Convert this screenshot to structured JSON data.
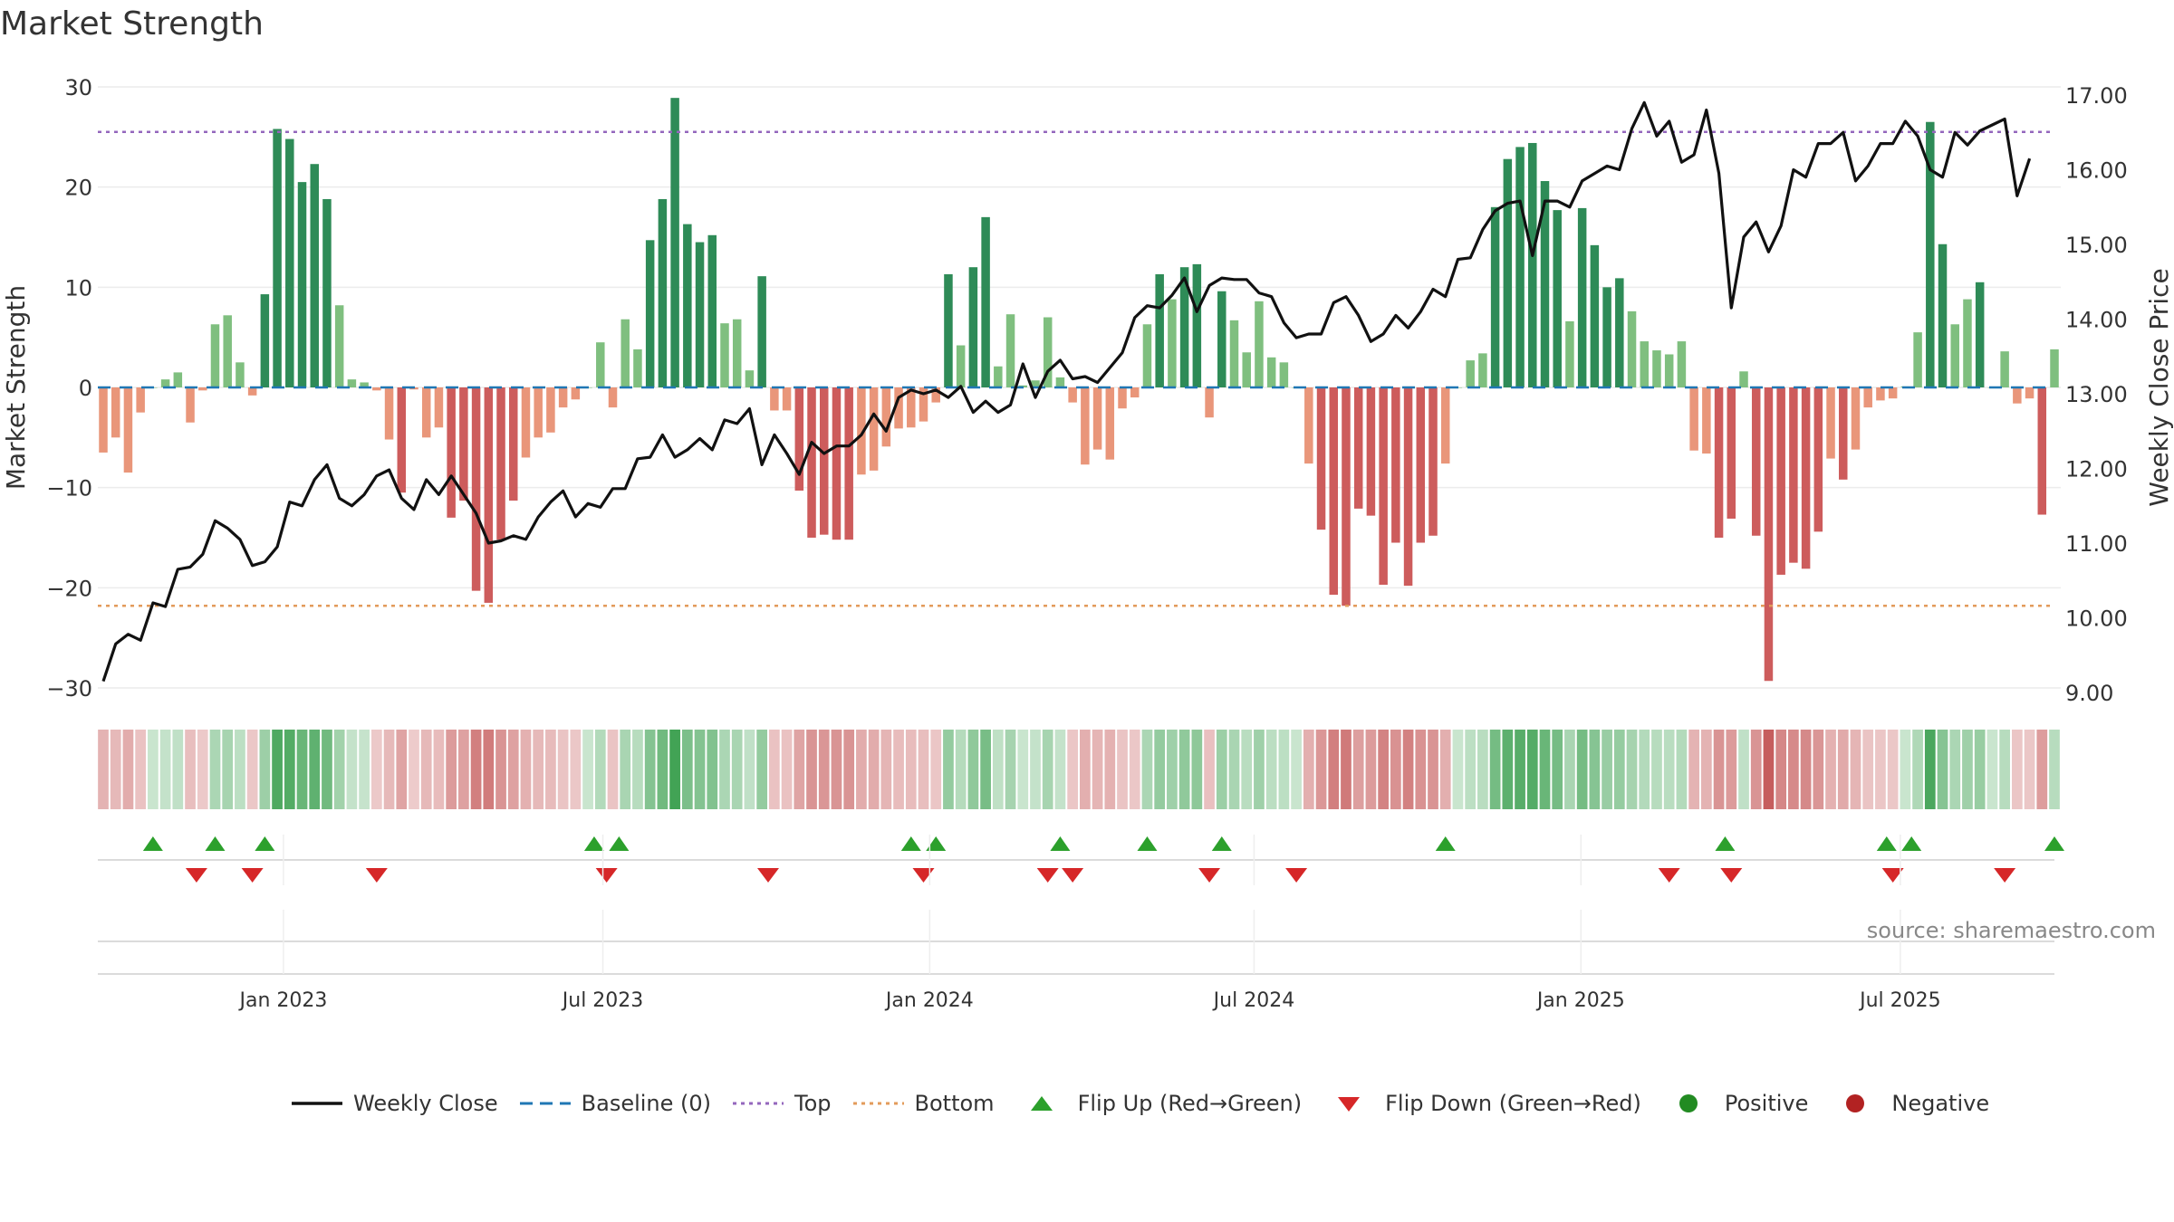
{
  "title": "Market Strength",
  "source": "source: sharemaestro.com",
  "colors": {
    "strong_green": "#2e8b57",
    "light_green": "#7fbf7f",
    "strong_red": "#cd5c5c",
    "light_red": "#e9967a",
    "close_line": "#111111",
    "baseline": "#1f77b4",
    "top": "#9467bd",
    "bottom": "#e39b5b",
    "flip_up": "#2ca02c",
    "flip_down": "#d62728",
    "positive": "#228b22",
    "negative": "#b22222"
  },
  "legend": [
    {
      "label": "Weekly Close",
      "kind": "line",
      "color": "#111111",
      "icon": "line-icon"
    },
    {
      "label": "Baseline (0)",
      "kind": "dash",
      "color": "#1f77b4",
      "icon": "dash-icon"
    },
    {
      "label": "Top",
      "kind": "dot",
      "color": "#9467bd",
      "icon": "dotted-line-icon"
    },
    {
      "label": "Bottom",
      "kind": "dot",
      "color": "#e39b5b",
      "icon": "dotted-line-icon"
    },
    {
      "label": "Flip Up (Red→Green)",
      "kind": "up",
      "color": "#2ca02c",
      "icon": "triangle-up-icon"
    },
    {
      "label": "Flip Down (Green→Red)",
      "kind": "down",
      "color": "#d62728",
      "icon": "triangle-down-icon"
    },
    {
      "label": "Positive",
      "kind": "circle",
      "color": "#228b22",
      "icon": "circle-icon"
    },
    {
      "label": "Negative",
      "kind": "circle",
      "color": "#b22222",
      "icon": "circle-icon"
    }
  ],
  "chart_data": {
    "type": "bar",
    "title": "Market Strength",
    "ylabel": "Market Strength",
    "y2label": "Weekly Close Price",
    "ylim": [
      -31,
      30.5
    ],
    "y2lim": [
      8.9,
      17.2
    ],
    "yticks": [
      30,
      20,
      10,
      0,
      -10,
      -20,
      -30
    ],
    "yticklabels": [
      "30",
      "20",
      "10",
      "0",
      "−10",
      "−20",
      "−30"
    ],
    "y2ticks": [
      17,
      16,
      15,
      14,
      13,
      12,
      11,
      10,
      9
    ],
    "y2ticklabels": [
      "17.00",
      "16.00",
      "15.00",
      "14.00",
      "13.00",
      "12.00",
      "11.00",
      "10.00",
      "9.00"
    ],
    "top_level": 25.5,
    "bottom_level": -21.8,
    "baseline": 0,
    "x_range": [
      0,
      157
    ],
    "xticks": [
      14.5,
      40.2,
      66.5,
      92.6,
      118.9,
      144.6
    ],
    "xticklabels": [
      "Jan 2023",
      "Jul 2023",
      "Jan 2024",
      "Jul 2024",
      "Jan 2025",
      "Jul 2025"
    ],
    "series": [
      {
        "name": "Market Strength",
        "values": [
          -6.5,
          -5,
          -8.5,
          -2.5,
          0,
          0.8,
          1.5,
          -3.5,
          -0.3,
          6.3,
          7.2,
          2.5,
          -0.8,
          9.3,
          25.8,
          24.8,
          20.5,
          22.3,
          18.8,
          8.2,
          0.8,
          0.5,
          -0.3,
          -5.2,
          -10.5,
          -0.2,
          -5,
          -4,
          -13,
          -11.3,
          -20.3,
          -21.5,
          -15.2,
          -11.3,
          -7,
          -5,
          -4.5,
          -2,
          -1.2,
          0,
          4.5,
          -2,
          6.8,
          3.8,
          14.7,
          18.8,
          28.9,
          16.3,
          14.5,
          15.2,
          6.4,
          6.8,
          1.7,
          11.1,
          -2.3,
          -2.3,
          -10.3,
          -15,
          -14.7,
          -15.2,
          -15.2,
          -8.7,
          -8.3,
          -5.9,
          -4.1,
          -4,
          -3.4,
          -1.5,
          11.3,
          4.2,
          12,
          17,
          2.1,
          7.3,
          0.2,
          0.7,
          7,
          1,
          -1.5,
          -7.7,
          -6.2,
          -7.2,
          -2.1,
          -1,
          6.3,
          11.3,
          8.8,
          12,
          12.3,
          -3,
          9.6,
          6.7,
          3.5,
          8.6,
          3,
          2.5,
          0,
          -7.6,
          -14.2,
          -20.7,
          -21.8,
          -12.1,
          -12.8,
          -19.7,
          -15.5,
          -19.8,
          -15.5,
          -14.8,
          -7.6,
          0,
          2.7,
          3.4,
          18,
          22.8,
          24,
          24.4,
          20.6,
          17.7,
          6.6,
          17.9,
          14.2,
          10,
          10.9,
          7.6,
          4.6,
          3.7,
          3.3,
          4.6,
          -6.3,
          -6.6,
          -15,
          -13.1,
          1.6,
          -14.8,
          -29.3,
          -18.7,
          -17.5,
          -18.1,
          -14.4,
          -7.1,
          -9.2,
          -6.2,
          -2,
          -1.3,
          -1.1,
          0.1,
          5.5,
          26.5,
          14.3,
          6.3,
          8.8,
          10.5,
          0,
          3.6,
          -1.6,
          -1.1,
          -12.7,
          3.8
        ]
      },
      {
        "name": "Weekly Close",
        "values": [
          9.15,
          9.65,
          9.78,
          9.7,
          10.2,
          10.15,
          10.65,
          10.68,
          10.85,
          11.3,
          11.2,
          11.05,
          10.7,
          10.75,
          10.95,
          11.55,
          11.5,
          11.85,
          12.05,
          11.6,
          11.5,
          11.65,
          11.9,
          11.98,
          11.6,
          11.45,
          11.85,
          11.65,
          11.9,
          11.65,
          11.4,
          11.0,
          11.03,
          11.1,
          11.05,
          11.35,
          11.55,
          11.7,
          11.35,
          11.53,
          11.48,
          11.73,
          11.73,
          12.13,
          12.15,
          12.45,
          12.15,
          12.25,
          12.4,
          12.25,
          12.65,
          12.6,
          12.8,
          12.05,
          12.45,
          12.2,
          11.92,
          12.35,
          12.2,
          12.3,
          12.3,
          12.45,
          12.73,
          12.5,
          12.95,
          13.05,
          13.0,
          13.05,
          12.95,
          13.1,
          12.75,
          12.9,
          12.75,
          12.85,
          13.4,
          12.95,
          13.3,
          13.45,
          13.2,
          13.23,
          13.15,
          13.35,
          13.55,
          14.02,
          14.18,
          14.15,
          14.32,
          14.55,
          14.1,
          14.45,
          14.55,
          14.53,
          14.53,
          14.35,
          14.3,
          13.95,
          13.75,
          13.8,
          13.8,
          14.22,
          14.3,
          14.05,
          13.7,
          13.8,
          14.05,
          13.88,
          14.1,
          14.4,
          14.3,
          14.8,
          14.82,
          15.2,
          15.45,
          15.55,
          15.58,
          14.85,
          15.58,
          15.58,
          15.5,
          15.85,
          15.95,
          16.05,
          16.0,
          16.55,
          16.9,
          16.45,
          16.65,
          16.1,
          16.2,
          16.8,
          15.95,
          14.15,
          15.1,
          15.3,
          14.9,
          15.25,
          16.0,
          15.9,
          16.35,
          16.35,
          16.5,
          15.85,
          16.05,
          16.35,
          16.35,
          16.65,
          16.45,
          16.0,
          15.9,
          16.5,
          16.33,
          16.52,
          16.6,
          16.68,
          15.65,
          16.15
        ]
      }
    ],
    "flip_up": [
      4,
      9,
      13,
      39.5,
      41.5,
      65,
      67,
      77,
      84,
      90,
      108,
      130.5,
      143.5,
      145.5,
      157
    ],
    "flip_down": [
      7.5,
      12,
      22,
      40.5,
      53.5,
      66,
      76,
      78,
      89,
      96,
      126,
      131,
      144,
      153
    ]
  }
}
